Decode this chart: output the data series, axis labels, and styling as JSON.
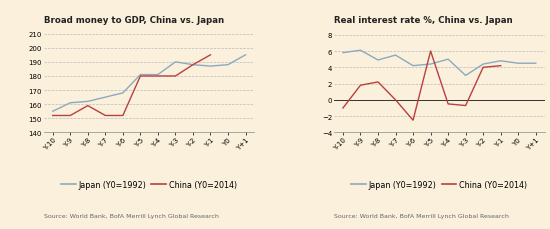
{
  "x_labels": [
    "Y-10",
    "Y-9",
    "Y-8",
    "Y-7",
    "Y-6",
    "Y-5",
    "Y-4",
    "Y-3",
    "Y-2",
    "Y-1",
    "Y0",
    "Y+1"
  ],
  "chart1": {
    "title": "Broad money to GDP, China vs. Japan",
    "japan": [
      155,
      161,
      162,
      165,
      168,
      181,
      181,
      190,
      188,
      187,
      188,
      195
    ],
    "china": [
      152,
      152,
      159,
      152,
      152,
      180,
      180,
      180,
      188,
      195,
      null,
      null
    ],
    "ylim": [
      140,
      215
    ],
    "yticks": [
      140,
      150,
      160,
      170,
      180,
      190,
      200,
      210
    ],
    "japan_color": "#8baabf",
    "china_color": "#b94040"
  },
  "chart2": {
    "title": "Real interest rate %, China vs. Japan",
    "japan": [
      5.8,
      6.1,
      4.9,
      5.5,
      4.2,
      4.4,
      5.0,
      3.0,
      4.4,
      4.8,
      4.5,
      4.5
    ],
    "china": [
      -1.0,
      1.8,
      2.2,
      0.0,
      -2.5,
      6.0,
      -0.5,
      -0.7,
      4.0,
      4.2,
      null,
      null
    ],
    "ylim": [
      -4,
      9
    ],
    "yticks": [
      -4,
      -2,
      0,
      2,
      4,
      6,
      8
    ],
    "japan_color": "#8baabf",
    "china_color": "#b94040"
  },
  "legend_japan": "Japan (Y0=1992)",
  "legend_china": "China (Y0=2014)",
  "source_text": "Source: World Bank, BofA Merrill Lynch Global Research",
  "bg_color": "#faf0dc",
  "grid_color": "#bbbbbb",
  "title_color": "#222222",
  "title_fontsize": 6.2,
  "tick_fontsize": 5.0,
  "legend_fontsize": 5.8,
  "source_fontsize": 4.5,
  "line_width": 1.0
}
